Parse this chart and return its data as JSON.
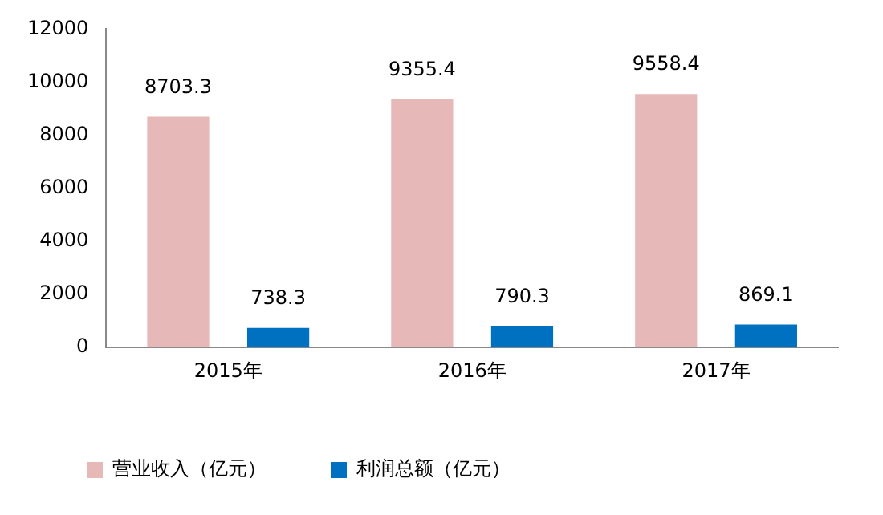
{
  "chart_data": {
    "type": "bar",
    "categories": [
      "2015年",
      "2016年",
      "2017年"
    ],
    "series": [
      {
        "name": "营业收入（亿元）",
        "color": "#e6b9b8",
        "values": [
          8703.3,
          9355.4,
          9558.4
        ]
      },
      {
        "name": "利润总额（亿元）",
        "color": "#0070c0",
        "values": [
          738.3,
          790.3,
          869.1
        ]
      }
    ],
    "ylim": [
      0,
      12000
    ],
    "yticks": [
      0,
      2000,
      4000,
      6000,
      8000,
      10000,
      12000
    ],
    "grid": false,
    "legend": "bottom",
    "data_labels": true
  }
}
